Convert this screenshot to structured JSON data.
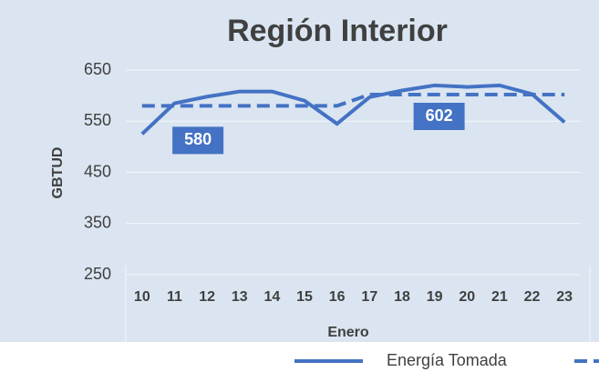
{
  "chart_data": {
    "type": "line",
    "title": "Región Interior",
    "x_label": "Enero",
    "y_label": "GBTUD",
    "categories": [
      "10",
      "11",
      "12",
      "13",
      "14",
      "15",
      "16",
      "17",
      "18",
      "19",
      "20",
      "21",
      "22",
      "23"
    ],
    "series": [
      {
        "name": "Energía Tomada",
        "color": "#4472c4",
        "dash": false,
        "values": [
          525,
          585,
          598,
          608,
          608,
          590,
          545,
          597,
          610,
          620,
          617,
          620,
          603,
          548
        ]
      },
      {
        "color": "#4472c4",
        "dash": true,
        "values": [
          580,
          580,
          580,
          580,
          580,
          580,
          580,
          602,
          602,
          602,
          602,
          602,
          602,
          602
        ]
      }
    ],
    "ylim": [
      250,
      650
    ],
    "yticks": [
      250,
      350,
      450,
      550,
      650
    ],
    "grid": true
  }
}
